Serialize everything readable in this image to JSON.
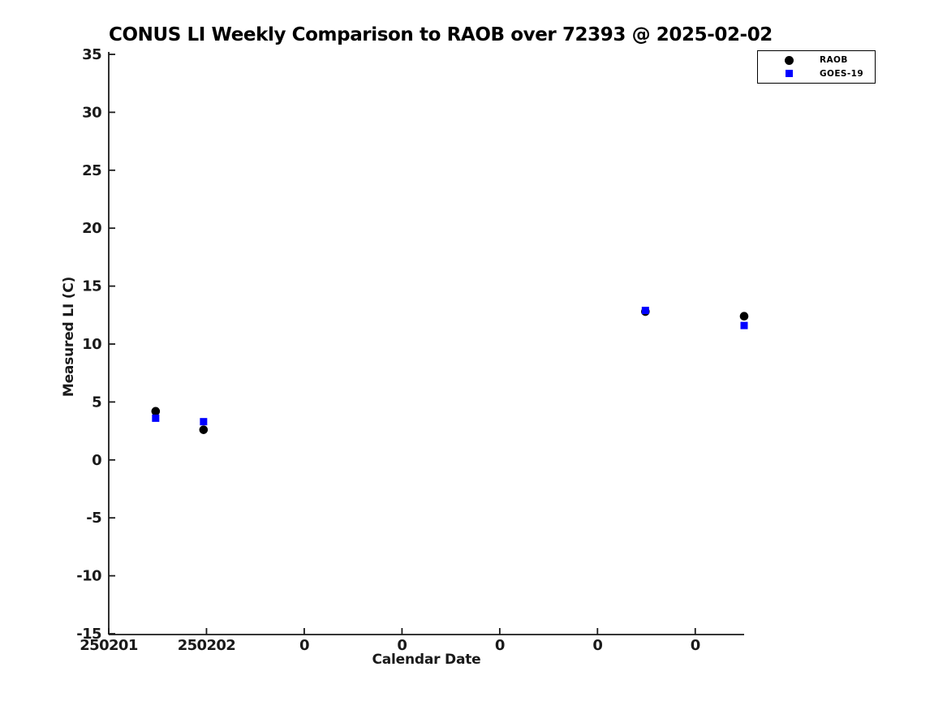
{
  "chart_data": {
    "type": "scatter",
    "title": "CONUS LI Weekly Comparison to RAOB over 72393 @ 2025-02-02",
    "xlabel": "Calendar Date",
    "ylabel": "Measured LI (C)",
    "ylim": [
      -15,
      35
    ],
    "yticks": [
      -15,
      -10,
      -5,
      0,
      5,
      10,
      15,
      20,
      25,
      30,
      35
    ],
    "xtick_labels": [
      "250201",
      "250202",
      "0",
      "0",
      "0",
      "0",
      "0"
    ],
    "x_units": "tick index (0 = 250201, 1 = 250202, one tick per day)",
    "xlim_tick_units": [
      0,
      6.5
    ],
    "grid": false,
    "legend_position": "top-right",
    "axis_color": "#1a1a1a",
    "series": [
      {
        "name": "RAOB",
        "marker": "circle",
        "color": "#000000",
        "points": [
          {
            "x": 0.48,
            "y": 4.2
          },
          {
            "x": 0.97,
            "y": 2.6
          },
          {
            "x": 5.49,
            "y": 12.8
          },
          {
            "x": 6.5,
            "y": 12.4
          }
        ]
      },
      {
        "name": "GOES-19",
        "marker": "square",
        "color": "#0000ff",
        "points": [
          {
            "x": 0.48,
            "y": 3.6
          },
          {
            "x": 0.97,
            "y": 3.3
          },
          {
            "x": 5.49,
            "y": 12.9
          },
          {
            "x": 6.5,
            "y": 11.6
          }
        ]
      }
    ]
  }
}
